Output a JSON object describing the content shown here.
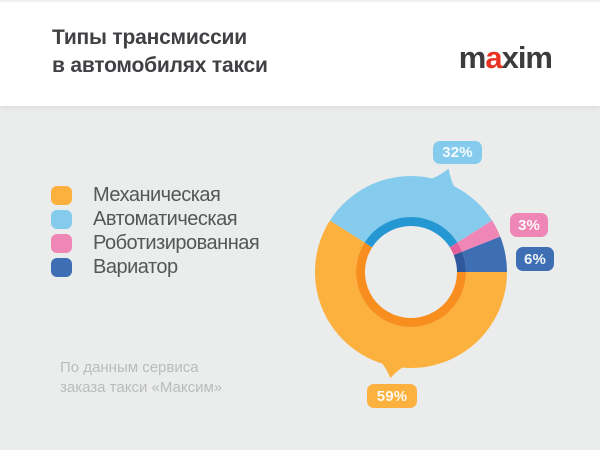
{
  "header": {
    "title_line1": "Типы трансмиссии",
    "title_line2": "в автомобилях такси",
    "logo": {
      "part1": "m",
      "accent": "a",
      "part2": "xim"
    }
  },
  "chart_data": {
    "type": "pie",
    "subtype": "donut",
    "title": "Типы трансмиссии в автомобилях такси",
    "unit": "%",
    "start_angle_deg": 90,
    "legend_position": "left",
    "segments": [
      {
        "label": "Механическая",
        "value": 59,
        "badge_label": "59%",
        "color": "#FCB13F",
        "inner_color": "#F78E1E"
      },
      {
        "label": "Автоматическая",
        "value": 32,
        "badge_label": "32%",
        "color": "#85CBED",
        "inner_color": "#2598D4"
      },
      {
        "label": "Роботизированная",
        "value": 3,
        "badge_label": "3%",
        "color": "#EF87B6",
        "inner_color": "#E4609C"
      },
      {
        "label": "Вариатор",
        "value": 6,
        "badge_label": "6%",
        "color": "#3E6FB5",
        "inner_color": "#2F579B"
      }
    ]
  },
  "source": {
    "line1": "По данным сервиса",
    "line2": "заказа такси «Максим»"
  },
  "colors": {
    "background": "#EBECEC",
    "header_background": "#FFFFFF",
    "title_text": "#414145",
    "legend_text": "#545658",
    "source_text": "#BABBBD",
    "logo_text": "#3C3C3E",
    "logo_accent": "#E93223",
    "badge_text": "#FFFFFF"
  }
}
